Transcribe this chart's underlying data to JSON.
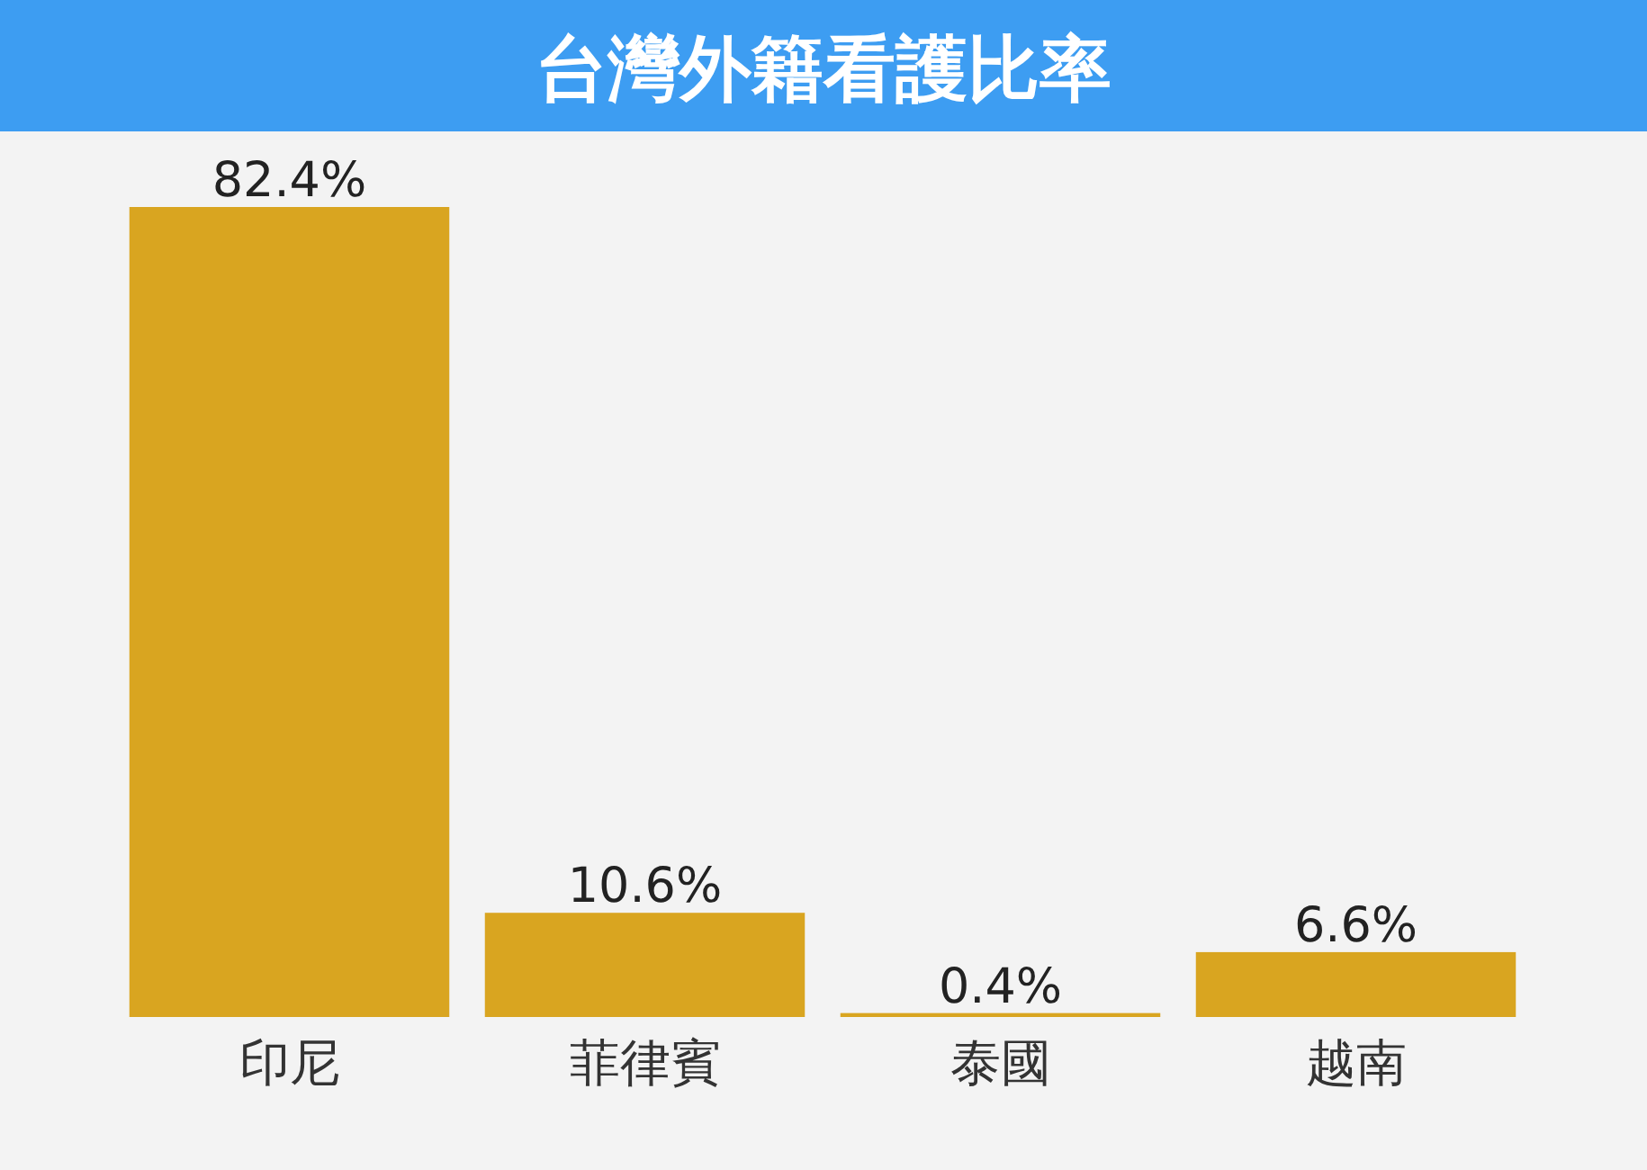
{
  "chart_data": {
    "type": "bar",
    "title": "台灣外籍看護比率",
    "categories": [
      "印尼",
      "菲律賓",
      "泰國",
      "越南"
    ],
    "values": [
      82.4,
      10.6,
      0.4,
      6.6
    ],
    "value_labels": [
      "82.4%",
      "10.6%",
      "0.4%",
      "6.6%"
    ],
    "color": "#d9a520"
  }
}
